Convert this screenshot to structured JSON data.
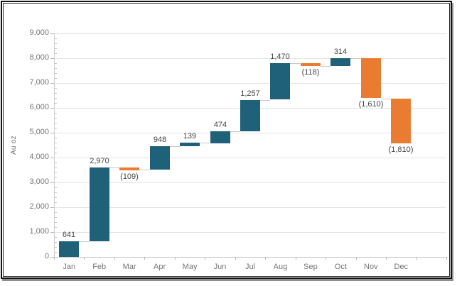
{
  "chart_data": {
    "type": "waterfall",
    "title": "",
    "xlabel": "",
    "ylabel": "Au oz",
    "categories": [
      "Jan",
      "Feb",
      "Mar",
      "Apr",
      "May",
      "Jun",
      "Jul",
      "Aug",
      "Sep",
      "Oct",
      "Nov",
      "Dec"
    ],
    "changes": [
      641,
      2970,
      -109,
      948,
      139,
      474,
      1257,
      1470,
      -118,
      314,
      -1610,
      -1810
    ],
    "data_labels": [
      "641",
      "2,970",
      "(109)",
      "948",
      "139",
      "474",
      "1,257",
      "1,470",
      "(118)",
      "314",
      "(1,610)",
      "(1,810)"
    ],
    "ylim": [
      0,
      9000
    ],
    "ytick_interval": 1000,
    "ytick_labels": [
      "0",
      "1,000",
      "2,000",
      "3,000",
      "4,000",
      "5,000",
      "6,000",
      "7,000",
      "8,000",
      "9,000"
    ],
    "minor_tick_interval": 200,
    "grid": true,
    "legend": "none",
    "extra_category_slots": 1,
    "colors": {
      "increase": "#1f6179",
      "decrease": "#ea7c31",
      "gridline": "#e4e4e4",
      "axis_line": "#c9c9c9",
      "connector": "#c9c9c9",
      "axis_text": "#757575",
      "data_label": "#464646"
    }
  }
}
